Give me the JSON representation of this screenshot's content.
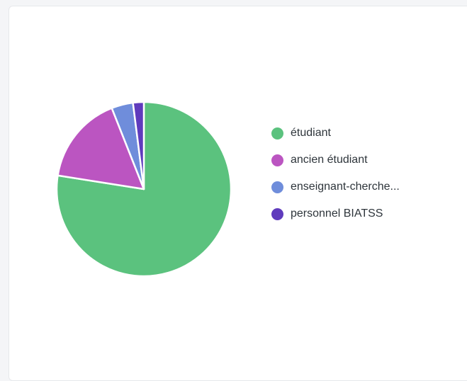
{
  "chart_data": {
    "type": "pie",
    "slices": [
      {
        "label": "étudiant",
        "value": 77.5,
        "color": "#5bc27e"
      },
      {
        "label": "ancien étudiant",
        "value": 16.5,
        "color": "#bb55c1"
      },
      {
        "label": "enseignant-cherche...",
        "value": 4.0,
        "color": "#6f8ddb"
      },
      {
        "label": "personnel BIATSS",
        "value": 2.0,
        "color": "#5f3bbd"
      }
    ],
    "legend_position": "right"
  }
}
